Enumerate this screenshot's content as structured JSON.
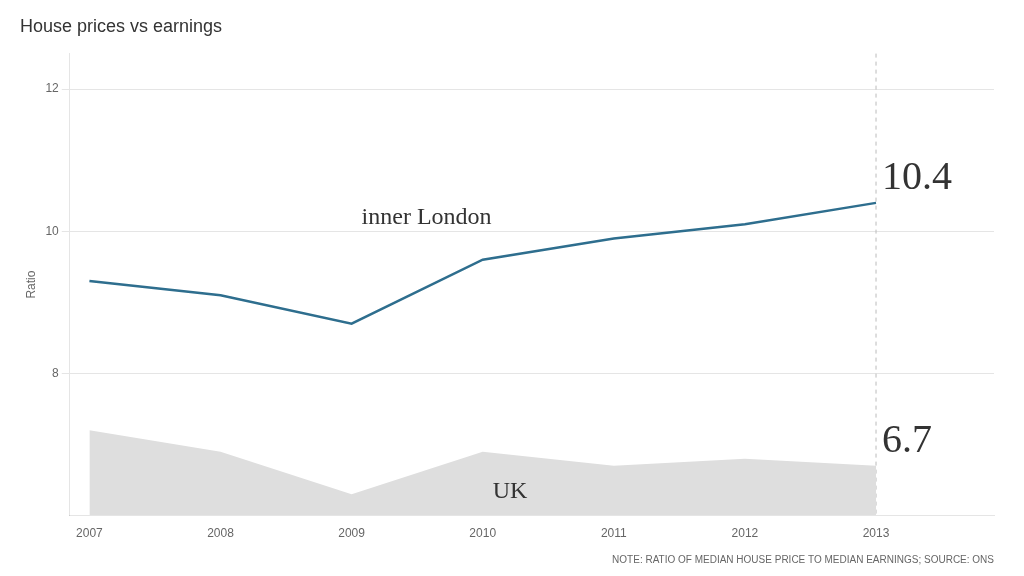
{
  "chart_data": {
    "type": "line",
    "title": "House prices vs earnings",
    "ylabel": "Ratio",
    "note": "NOTE: RATIO OF MEDIAN HOUSE PRICE TO MEDIAN EARNINGS; SOURCE: ONS",
    "x": [
      2007,
      2008,
      2009,
      2010,
      2011,
      2012,
      2013
    ],
    "series": [
      {
        "name": "inner London",
        "type": "line",
        "color": "#2E6E8E",
        "values": [
          9.3,
          9.1,
          8.7,
          9.6,
          9.9,
          10.1,
          10.4
        ]
      },
      {
        "name": "UK",
        "type": "area",
        "color": "#DEDEDE",
        "values": [
          7.2,
          6.9,
          6.3,
          6.9,
          6.7,
          6.8,
          6.7
        ]
      }
    ],
    "xlim": [
      2006.85,
      2013.9
    ],
    "xticks": [
      2007,
      2008,
      2009,
      2010,
      2011,
      2012,
      2013
    ],
    "ylim": [
      6.0,
      12.5
    ],
    "yticks": [
      8,
      10,
      12
    ],
    "grid": true,
    "annotations": [
      {
        "text": "10.4",
        "x": 2013,
        "y": 10.4
      },
      {
        "text": "6.7",
        "x": 2013,
        "y": 6.7
      }
    ],
    "vlines": [
      {
        "x": 2013,
        "color": "#BBBBBB",
        "line_style": "dashed"
      }
    ]
  }
}
